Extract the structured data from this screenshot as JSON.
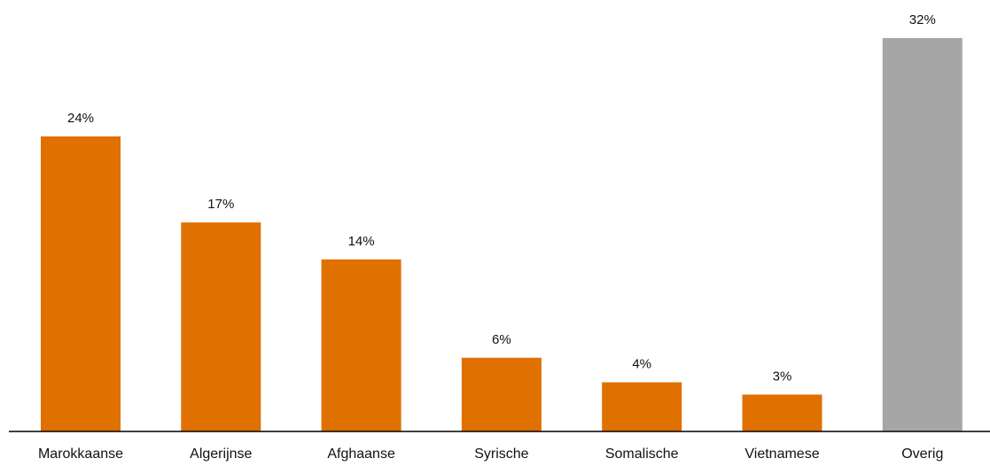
{
  "chart_data": {
    "type": "bar",
    "title": "",
    "xlabel": "",
    "ylabel": "",
    "ylim": [
      0,
      32
    ],
    "grid": false,
    "legend": "none",
    "categories": [
      "Marokkaanse",
      "Algerijnse",
      "Afghaanse",
      "Syrische",
      "Somalische",
      "Vietnamese",
      "Overig"
    ],
    "values": [
      24,
      17,
      14,
      6,
      4,
      3,
      32
    ],
    "value_labels": [
      "24%",
      "17%",
      "14%",
      "6%",
      "4%",
      "3%",
      "32%"
    ],
    "unit": "%",
    "colors": {
      "primary": "#E07000",
      "other": "#A6A6A6",
      "axis": "#000000",
      "text": "#111111"
    },
    "bar_colors": [
      "#E07000",
      "#E07000",
      "#E07000",
      "#E07000",
      "#E07000",
      "#E07000",
      "#A6A6A6"
    ]
  }
}
